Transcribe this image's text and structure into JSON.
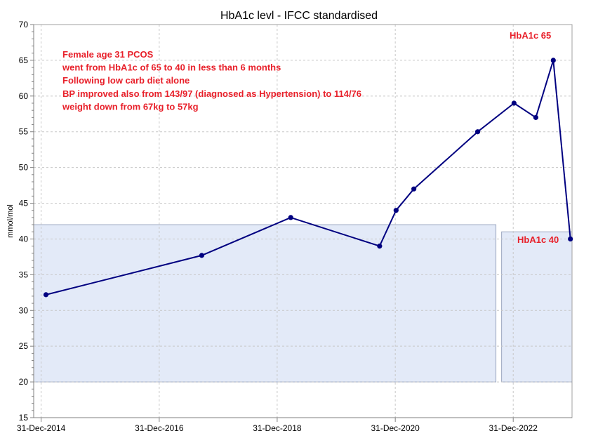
{
  "chart_data": {
    "type": "line",
    "title": "HbA1c levl - IFCC standardised",
    "xlabel": "",
    "ylabel": "mmol/mol",
    "ylim": [
      15,
      70
    ],
    "yticks": [
      15,
      20,
      25,
      30,
      35,
      40,
      45,
      50,
      55,
      60,
      65,
      70
    ],
    "xlim": [
      "2014-11-15",
      "2023-12-30"
    ],
    "xticks": [
      {
        "date": "2014-12-31",
        "label": "31-Dec-2014"
      },
      {
        "date": "2016-12-31",
        "label": "31-Dec-2016"
      },
      {
        "date": "2018-12-31",
        "label": "31-Dec-2018"
      },
      {
        "date": "2020-12-31",
        "label": "31-Dec-2020"
      },
      {
        "date": "2022-12-31",
        "label": "31-Dec-2022"
      }
    ],
    "grid": true,
    "series": [
      {
        "color": "#000080",
        "points": [
          {
            "x": "2015-01-30",
            "y": 32.2
          },
          {
            "x": "2017-09-20",
            "y": 37.7
          },
          {
            "x": "2019-03-25",
            "y": 43
          },
          {
            "x": "2020-09-25",
            "y": 39
          },
          {
            "x": "2021-01-05",
            "y": 44
          },
          {
            "x": "2021-04-25",
            "y": 47
          },
          {
            "x": "2022-05-25",
            "y": 55
          },
          {
            "x": "2023-01-05",
            "y": 59
          },
          {
            "x": "2023-05-20",
            "y": 57
          },
          {
            "x": "2023-09-05",
            "y": 65
          },
          {
            "x": "2023-12-20",
            "y": 40
          }
        ]
      }
    ],
    "reference_bands": [
      {
        "x_start": "2014-11-15",
        "x_end": "2022-09-15",
        "y_low": 20,
        "y_high": 42,
        "fill": "#e3eaf8"
      },
      {
        "x_start": "2022-10-20",
        "x_end": "2023-12-30",
        "y_low": 20,
        "y_high": 41,
        "fill": "#e3eaf8"
      }
    ],
    "annotations": [
      {
        "text": "Female age 31 PCOS",
        "color": "#e8202a"
      },
      {
        "text": "went from HbA1c of 65 to 40 in less than 6 months",
        "color": "#e8202a"
      },
      {
        "text": "Following low carb diet alone",
        "color": "#e8202a"
      },
      {
        "text": "BP improved also from 143/97 (diagnosed as Hypertension) to 114/76",
        "color": "#e8202a"
      },
      {
        "text": "weight down from 67kg to 57kg",
        "color": "#e8202a"
      }
    ],
    "point_labels": [
      {
        "text": "HbA1c 65",
        "color": "#e8202a"
      },
      {
        "text": "HbA1c 40",
        "color": "#e8202a"
      }
    ]
  }
}
